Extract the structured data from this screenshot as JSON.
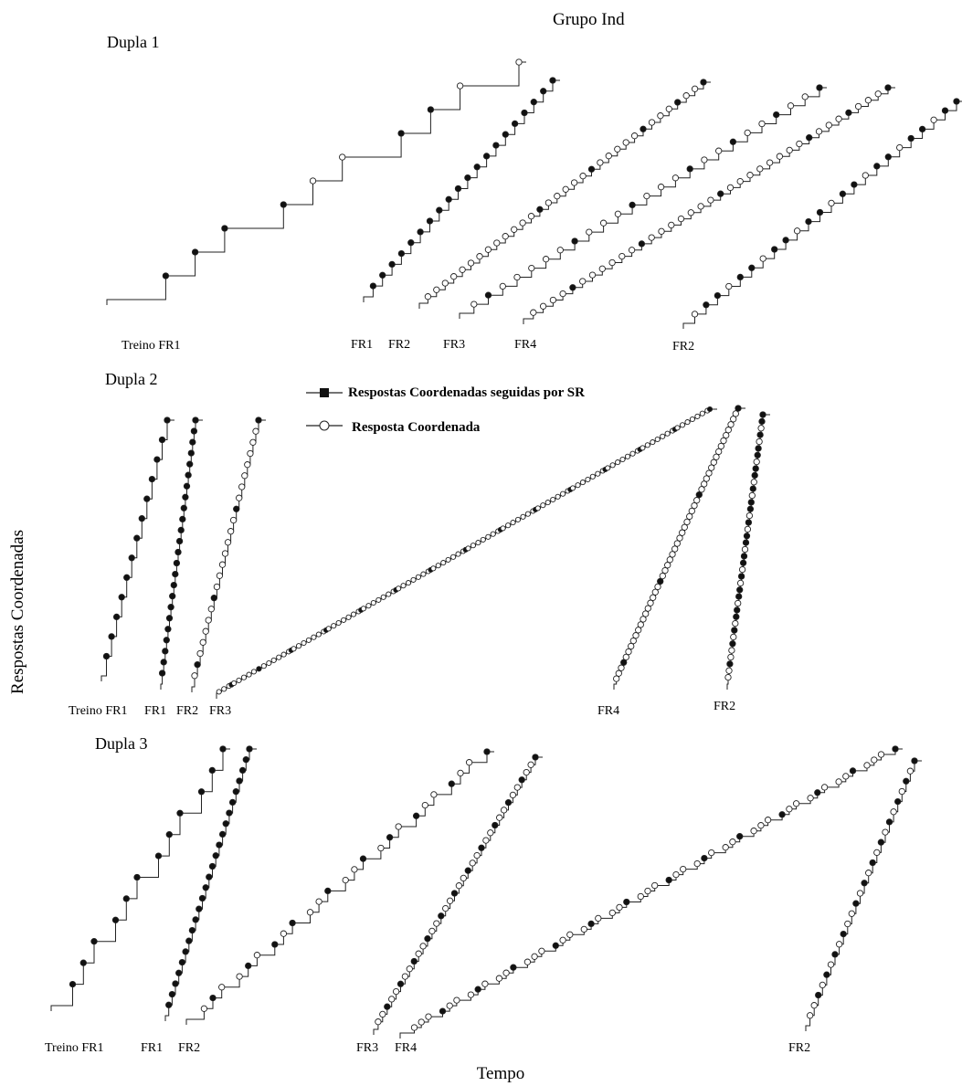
{
  "figure": {
    "title": "Grupo Ind",
    "ylabel": "Respostas Coordenadas",
    "xlabel": "Tempo"
  },
  "legend": {
    "reinforced_label": "Respostas Coordenadas seguidas por SR",
    "reinforced_color": "#111111",
    "unreinforced_label": "Resposta Coordenada",
    "unreinforced_color": "#ffffff"
  },
  "chart_data": [
    {
      "type": "line",
      "title": "Dupla 1",
      "series": [
        {
          "name": "Treino FR1",
          "steps": [
            "r",
            "r",
            "r",
            "r",
            "u",
            "u",
            "r",
            "r",
            "u",
            "u"
          ]
        },
        {
          "name": "FR1",
          "steps": [
            "r",
            "r",
            "r",
            "r",
            "r",
            "r",
            "r",
            "r",
            "r",
            "r",
            "r",
            "r",
            "r",
            "r",
            "r",
            "r",
            "r",
            "r",
            "r",
            "r"
          ]
        },
        {
          "name": "FR2",
          "steps": [
            "u",
            "u",
            "u",
            "u",
            "u",
            "u",
            "u",
            "u",
            "u",
            "u",
            "u",
            "u",
            "u",
            "r",
            "u",
            "u",
            "u",
            "u",
            "u",
            "r",
            "u",
            "u",
            "u",
            "u",
            "u",
            "r",
            "u",
            "u",
            "u",
            "r",
            "u",
            "u",
            "r"
          ]
        },
        {
          "name": "FR3",
          "steps": [
            "u",
            "r",
            "u",
            "u",
            "u",
            "u",
            "u",
            "r",
            "u",
            "u",
            "u",
            "r",
            "u",
            "u",
            "u",
            "r",
            "u",
            "u",
            "r",
            "u",
            "u",
            "r",
            "u",
            "u",
            "r"
          ]
        },
        {
          "name": "FR4",
          "steps": [
            "u",
            "u",
            "u",
            "u",
            "r",
            "u",
            "u",
            "u",
            "u",
            "u",
            "u",
            "r",
            "u",
            "u",
            "u",
            "u",
            "u",
            "u",
            "u",
            "r",
            "u",
            "u",
            "u",
            "u",
            "u",
            "u",
            "u",
            "u",
            "r",
            "u",
            "u",
            "u",
            "r",
            "u",
            "u",
            "u",
            "r"
          ]
        },
        {
          "name": "FR2",
          "steps": [
            "u",
            "r",
            "r",
            "u",
            "r",
            "r",
            "u",
            "r",
            "r",
            "u",
            "r",
            "r",
            "u",
            "r",
            "r",
            "u",
            "r",
            "r",
            "u",
            "r",
            "r",
            "u",
            "r",
            "r"
          ]
        }
      ]
    },
    {
      "type": "line",
      "title": "Dupla 2",
      "series": [
        {
          "name": "Treino FR1",
          "steps": [
            "r",
            "r",
            "r",
            "r",
            "r",
            "r",
            "r",
            "r",
            "r",
            "r",
            "r",
            "r",
            "r"
          ]
        },
        {
          "name": "FR1",
          "steps": [
            "r",
            "r",
            "r",
            "r",
            "r",
            "r",
            "r",
            "r",
            "r",
            "r",
            "r",
            "r",
            "r",
            "r",
            "r",
            "r",
            "r",
            "r",
            "r",
            "r",
            "r",
            "r",
            "r",
            "r"
          ]
        },
        {
          "name": "FR2",
          "steps": [
            "u",
            "r",
            "u",
            "u",
            "u",
            "u",
            "u",
            "r",
            "u",
            "u",
            "u",
            "u",
            "u",
            "u",
            "u",
            "r",
            "u",
            "u",
            "u",
            "u",
            "u",
            "u",
            "u",
            "r"
          ]
        },
        {
          "name": "FR3",
          "steps": [
            "u",
            "u",
            "u",
            "u",
            "u",
            "r",
            "u",
            "u",
            "u",
            "u",
            "u",
            "u",
            "u",
            "u",
            "u",
            "u",
            "r",
            "u",
            "u",
            "u",
            "u",
            "u",
            "u",
            "u",
            "u",
            "u",
            "u",
            "u",
            "u",
            "r",
            "u",
            "u",
            "u",
            "u",
            "u",
            "u",
            "u",
            "u",
            "u",
            "u",
            "u",
            "u",
            "u",
            "r",
            "u",
            "u",
            "u",
            "u",
            "u",
            "u",
            "u",
            "u",
            "u",
            "u",
            "u",
            "u",
            "u",
            "r",
            "u",
            "u",
            "u",
            "u",
            "u",
            "u",
            "u",
            "u",
            "u",
            "u",
            "u",
            "u",
            "u",
            "r",
            "u",
            "u",
            "u",
            "u",
            "u",
            "u",
            "u",
            "u",
            "u",
            "u",
            "u",
            "u",
            "u",
            "r",
            "u",
            "u",
            "u",
            "u",
            "u",
            "u",
            "u",
            "u",
            "u",
            "u",
            "u",
            "u",
            "u",
            "r",
            "u",
            "u",
            "u",
            "u",
            "u",
            "u",
            "u",
            "u",
            "u",
            "u",
            "u",
            "u",
            "u",
            "r",
            "u",
            "u",
            "u",
            "u",
            "u",
            "u",
            "u",
            "u",
            "u",
            "u",
            "u",
            "u",
            "u",
            "r",
            "u",
            "u",
            "u",
            "u",
            "u",
            "u",
            "u",
            "u",
            "u",
            "u",
            "u",
            "u",
            "u",
            "r",
            "u",
            "u",
            "u",
            "u",
            "u",
            "u",
            "u",
            "u",
            "u",
            "u",
            "u",
            "u",
            "u",
            "r",
            "u",
            "u",
            "u",
            "u",
            "u",
            "u",
            "u",
            "u",
            "u",
            "u",
            "u",
            "u",
            "u",
            "r",
            "u",
            "u",
            "u",
            "u",
            "u",
            "u",
            "u",
            "u",
            "u",
            "u",
            "u",
            "u",
            "u",
            "r",
            "u",
            "u",
            "u",
            "u",
            "u",
            "u",
            "u",
            "u",
            "u",
            "u",
            "u",
            "u",
            "u",
            "r"
          ]
        },
        {
          "name": "FR4",
          "steps": [
            "u",
            "u",
            "u",
            "r",
            "u",
            "u",
            "u",
            "u",
            "u",
            "u",
            "u",
            "u",
            "u",
            "u",
            "u",
            "u",
            "u",
            "u",
            "r",
            "u",
            "u",
            "u",
            "u",
            "u",
            "u",
            "u",
            "u",
            "u",
            "u",
            "u",
            "u",
            "u",
            "u",
            "u",
            "r",
            "u",
            "u",
            "u",
            "u",
            "u",
            "u",
            "u",
            "u",
            "u",
            "u",
            "u",
            "u",
            "u",
            "u",
            "u",
            "r"
          ]
        },
        {
          "name": "FR2",
          "steps": [
            "u",
            "u",
            "r",
            "u",
            "u",
            "r",
            "u",
            "r",
            "u",
            "r",
            "r",
            "u",
            "r",
            "r",
            "u",
            "r",
            "u",
            "r",
            "r",
            "u",
            "r",
            "r",
            "u",
            "r",
            "u",
            "r",
            "r",
            "u",
            "r",
            "u",
            "r",
            "r",
            "u",
            "r",
            "r",
            "u",
            "r",
            "u",
            "r",
            "r"
          ]
        }
      ]
    },
    {
      "type": "line",
      "title": "Dupla 3",
      "series": [
        {
          "name": "Treino FR1",
          "steps": [
            "r",
            "r",
            "r",
            "r",
            "r",
            "r",
            "r",
            "r",
            "r",
            "r",
            "r",
            "r"
          ]
        },
        {
          "name": "FR1",
          "steps": [
            "r",
            "r",
            "r",
            "r",
            "r",
            "r",
            "r",
            "r",
            "r",
            "r",
            "r",
            "r",
            "r",
            "r",
            "r",
            "r",
            "r",
            "r",
            "r",
            "r",
            "r",
            "r",
            "r",
            "r",
            "r"
          ]
        },
        {
          "name": "FR2",
          "steps": [
            "u",
            "r",
            "u",
            "u",
            "r",
            "u",
            "r",
            "u",
            "r",
            "u",
            "u",
            "r",
            "u",
            "u",
            "r",
            "u",
            "r",
            "u",
            "r",
            "u",
            "u",
            "r",
            "u",
            "u",
            "r"
          ]
        },
        {
          "name": "FR3",
          "steps": [
            "u",
            "u",
            "r",
            "u",
            "u",
            "r",
            "u",
            "u",
            "r",
            "u",
            "u",
            "r",
            "u",
            "u",
            "r",
            "u",
            "u",
            "r",
            "u",
            "u",
            "r",
            "u",
            "u",
            "r",
            "u",
            "u",
            "r",
            "u",
            "u",
            "r",
            "u",
            "u",
            "r",
            "u",
            "u",
            "r"
          ]
        },
        {
          "name": "FR4",
          "steps": [
            "u",
            "u",
            "u",
            "r",
            "u",
            "u",
            "u",
            "r",
            "u",
            "u",
            "u",
            "r",
            "u",
            "u",
            "u",
            "r",
            "u",
            "u",
            "u",
            "r",
            "u",
            "u",
            "u",
            "r",
            "u",
            "u",
            "u",
            "r",
            "u",
            "u",
            "u",
            "r",
            "u",
            "u",
            "u",
            "r",
            "u",
            "u",
            "u",
            "r",
            "u",
            "u",
            "u",
            "r",
            "u",
            "u",
            "u",
            "r",
            "u",
            "u",
            "u",
            "r"
          ]
        },
        {
          "name": "FR2",
          "steps": [
            "u",
            "u",
            "r",
            "u",
            "r",
            "u",
            "r",
            "u",
            "r",
            "u",
            "u",
            "r",
            "u",
            "r",
            "u",
            "r",
            "u",
            "r",
            "u",
            "r",
            "u",
            "r",
            "u",
            "r",
            "u",
            "r"
          ]
        }
      ]
    }
  ]
}
